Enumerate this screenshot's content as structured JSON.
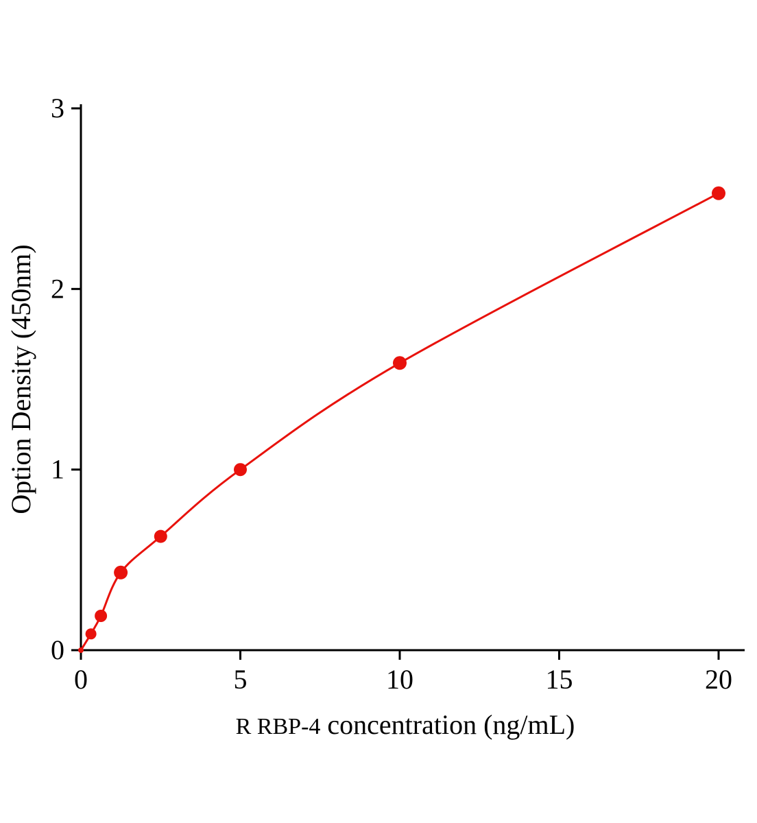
{
  "page": {
    "background": "#ffffff"
  },
  "chart_data": {
    "type": "scatter",
    "title": "",
    "xlabel": "R RBP-4 concentration（ng/mL）",
    "xlabel_parts": [
      "R RBP-4",
      " concentration（ng/mL）"
    ],
    "ylabel": "Option Density（450nm）",
    "x": [
      0,
      0.313,
      0.625,
      1.25,
      2.5,
      5,
      10,
      20
    ],
    "y": [
      0,
      0.09,
      0.19,
      0.43,
      0.63,
      1.0,
      1.59,
      2.53
    ],
    "x_ticks": [
      0,
      5,
      10,
      15,
      20
    ],
    "y_ticks": [
      0,
      1,
      2,
      3
    ],
    "xlim": [
      0,
      20.8
    ],
    "ylim": [
      0,
      3
    ],
    "grid": false,
    "legend": "none",
    "curve": "smooth fitted line through points",
    "series_color": "#e8120c",
    "axis_color": "#000000",
    "marker": "circle",
    "marker_radii": [
      4,
      8,
      9,
      10,
      9.5,
      9.5,
      10,
      10
    ],
    "line_width": 3
  }
}
